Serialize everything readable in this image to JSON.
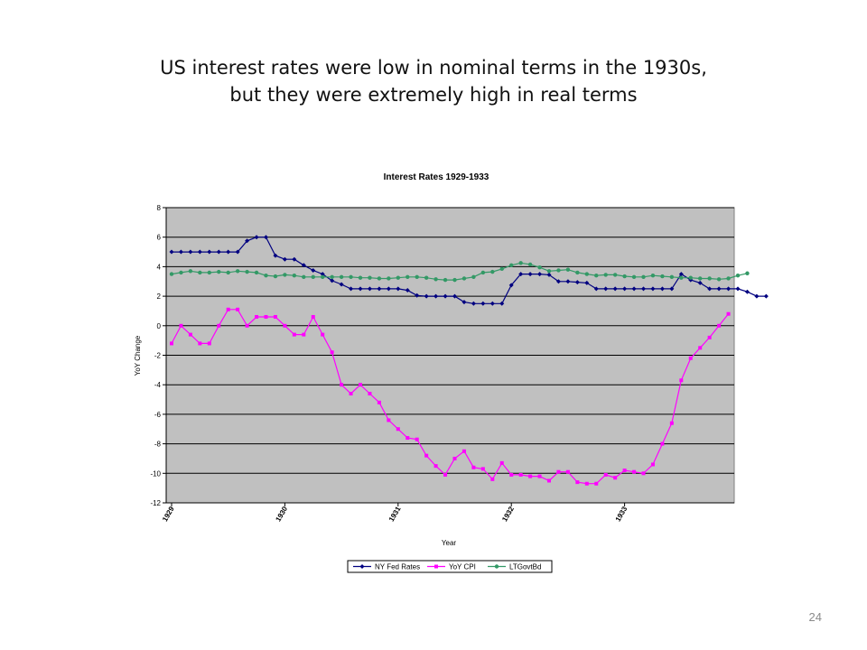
{
  "slide": {
    "title_line1": "US interest rates were low in nominal terms in the 1930s,",
    "title_line2": "but they were extremely high in real terms",
    "page_number": "24"
  },
  "chart_data": {
    "type": "line",
    "title": "Interest Rates 1929-1933",
    "xlabel": "Year",
    "ylabel": "YoY Change",
    "ylim": [
      -12,
      8
    ],
    "yticks": [
      8,
      6,
      4,
      2,
      0,
      -2,
      -4,
      -6,
      -8,
      -10,
      -12
    ],
    "x_tick_labels": [
      "1929",
      "1930",
      "1931",
      "1932",
      "1933"
    ],
    "points_per_year": 12,
    "grid": "horizontal",
    "legend": "bottom",
    "colors": {
      "plot_background": "#c0c0c0",
      "grid": "#000000",
      "axis": "#000000"
    },
    "series": [
      {
        "name": "NY Fed Rates",
        "color": "#000080",
        "marker": "diamond",
        "values": [
          5,
          5,
          5,
          5,
          5,
          5,
          5,
          5,
          5.75,
          6,
          6,
          4.75,
          4.5,
          4.5,
          4.1,
          3.75,
          3.5,
          3.05,
          2.8,
          2.5,
          2.5,
          2.5,
          2.5,
          2.5,
          2.5,
          2.4,
          2.05,
          2,
          2,
          2,
          2,
          1.6,
          1.5,
          1.5,
          1.5,
          1.5,
          2.75,
          3.5,
          3.5,
          3.5,
          3.45,
          3,
          3,
          2.95,
          2.9,
          2.5,
          2.5,
          2.5,
          2.5,
          2.5,
          2.5,
          2.5,
          2.5,
          2.5,
          3.5,
          3.1,
          2.9,
          2.5,
          2.5,
          2.5,
          2.5,
          2.3,
          2,
          2
        ]
      },
      {
        "name": "YoY CPI",
        "color": "#ff00ff",
        "marker": "square",
        "values": [
          -1.2,
          0,
          -0.6,
          -1.2,
          -1.2,
          0,
          1.1,
          1.1,
          0,
          0.6,
          0.6,
          0.6,
          0,
          -0.6,
          -0.6,
          0.6,
          -0.6,
          -1.8,
          -4,
          -4.6,
          -4,
          -4.6,
          -5.2,
          -6.4,
          -7,
          -7.6,
          -7.7,
          -8.8,
          -9.5,
          -10.1,
          -9,
          -8.5,
          -9.6,
          -9.7,
          -10.4,
          -9.3,
          -10.1,
          -10.1,
          -10.2,
          -10.2,
          -10.5,
          -9.9,
          -9.9,
          -10.6,
          -10.7,
          -10.7,
          -10.1,
          -10.3,
          -9.8,
          -9.9,
          -10,
          -9.4,
          -8,
          -6.6,
          -3.7,
          -2.2,
          -1.5,
          -0.8,
          0,
          0.8
        ]
      },
      {
        "name": "LTGovtBd",
        "color": "#339966",
        "marker": "circle",
        "values": [
          3.5,
          3.6,
          3.7,
          3.6,
          3.6,
          3.65,
          3.6,
          3.7,
          3.65,
          3.6,
          3.4,
          3.35,
          3.45,
          3.4,
          3.3,
          3.3,
          3.3,
          3.3,
          3.3,
          3.3,
          3.25,
          3.25,
          3.2,
          3.2,
          3.25,
          3.3,
          3.3,
          3.25,
          3.15,
          3.1,
          3.1,
          3.2,
          3.3,
          3.6,
          3.65,
          3.85,
          4.1,
          4.25,
          4.15,
          3.95,
          3.7,
          3.75,
          3.8,
          3.6,
          3.5,
          3.4,
          3.45,
          3.45,
          3.35,
          3.3,
          3.3,
          3.4,
          3.35,
          3.3,
          3.25,
          3.25,
          3.2,
          3.2,
          3.15,
          3.2,
          3.4,
          3.55
        ]
      }
    ]
  }
}
